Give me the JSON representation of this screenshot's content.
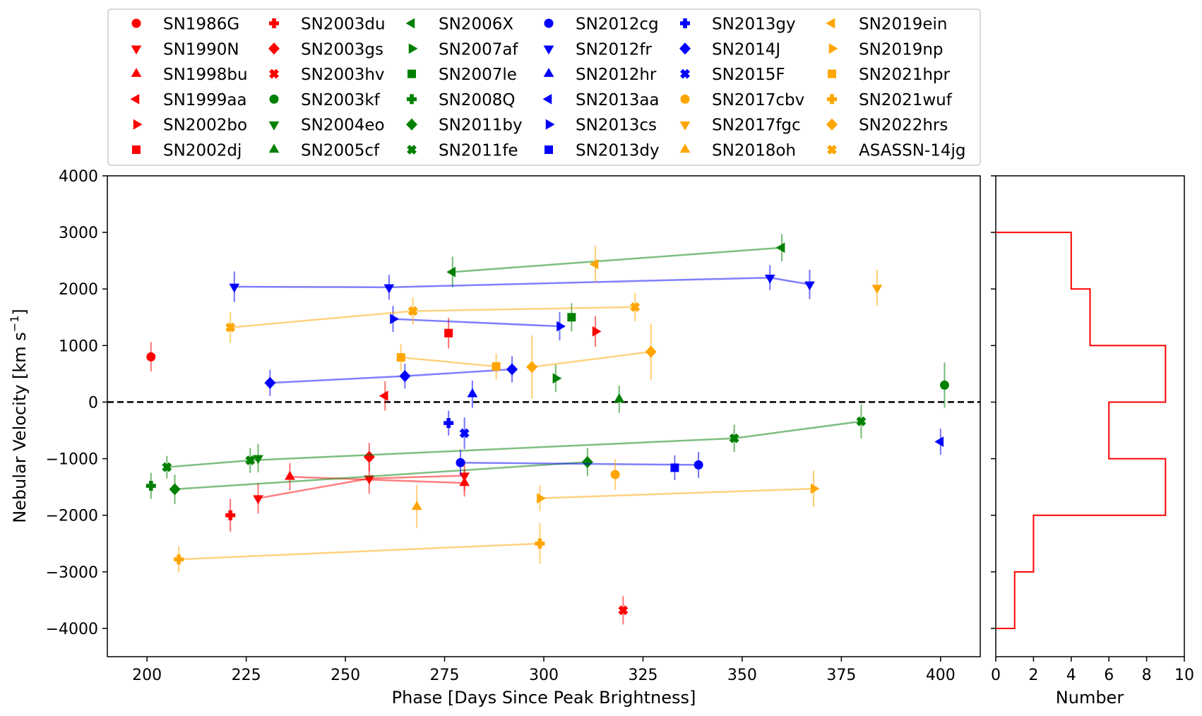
{
  "chart_data": {
    "type": "scatter",
    "xlabel": "Phase [Days Since Peak Brightness]",
    "ylabel_main": "Nebular Velocity [km s",
    "ylabel_sup": "−1",
    "ylabel_end": "]",
    "xlim": [
      190,
      410
    ],
    "ylim": [
      -4500,
      4000
    ],
    "xticks": [
      200,
      225,
      250,
      275,
      300,
      325,
      350,
      375,
      400
    ],
    "yticks": [
      -4000,
      -3000,
      -2000,
      -1000,
      0,
      1000,
      2000,
      3000,
      4000
    ],
    "ytick_labels": [
      "−4000",
      "−3000",
      "−2000",
      "−1000",
      "0",
      "1000",
      "2000",
      "3000",
      "4000"
    ],
    "zero_line": true,
    "colors": {
      "red": "#ff0000",
      "green": "#008000",
      "blue": "#0000ff",
      "orange": "#ffa500"
    },
    "series": [
      {
        "name": "SN1986G",
        "color": "red",
        "marker": "circle",
        "points": [
          [
            201,
            800,
            260
          ]
        ]
      },
      {
        "name": "SN1990N",
        "color": "red",
        "marker": "tri_down",
        "points": [
          [
            228,
            -1700,
            270
          ],
          [
            256,
            -1350,
            270
          ],
          [
            280,
            -1300,
            270
          ]
        ]
      },
      {
        "name": "SN1998bu",
        "color": "red",
        "marker": "tri_up",
        "points": [
          [
            236,
            -1320,
            240
          ],
          [
            280,
            -1430,
            240
          ]
        ]
      },
      {
        "name": "SN1999aa",
        "color": "red",
        "marker": "tri_left",
        "points": [
          [
            260,
            110,
            260
          ]
        ]
      },
      {
        "name": "SN2002bo",
        "color": "red",
        "marker": "tri_right",
        "points": [
          [
            313,
            1250,
            270
          ]
        ]
      },
      {
        "name": "SN2002dj",
        "color": "red",
        "marker": "square",
        "points": [
          [
            276,
            1220,
            270
          ]
        ]
      },
      {
        "name": "SN2003du",
        "color": "red",
        "marker": "plus",
        "points": [
          [
            221,
            -2000,
            290
          ]
        ]
      },
      {
        "name": "SN2003gs",
        "color": "red",
        "marker": "diamond",
        "points": [
          [
            256,
            -970,
            250
          ]
        ]
      },
      {
        "name": "SN2003hv",
        "color": "red",
        "marker": "x",
        "points": [
          [
            320,
            -3680,
            250
          ]
        ]
      },
      {
        "name": "SN2003kf",
        "color": "green",
        "marker": "circle",
        "points": [
          [
            401,
            300,
            400
          ]
        ]
      },
      {
        "name": "SN2004eo",
        "color": "green",
        "marker": "tri_down",
        "points": [
          [
            228,
            -990,
            250
          ]
        ]
      },
      {
        "name": "SN2005cf",
        "color": "green",
        "marker": "tri_up",
        "points": [
          [
            319,
            50,
            240
          ]
        ]
      },
      {
        "name": "SN2006X",
        "color": "green",
        "marker": "tri_left",
        "points": [
          [
            277,
            2300,
            270
          ],
          [
            360,
            2730,
            240
          ]
        ]
      },
      {
        "name": "SN2007af",
        "color": "green",
        "marker": "tri_right",
        "points": [
          [
            303,
            420,
            240
          ]
        ]
      },
      {
        "name": "SN2007le",
        "color": "green",
        "marker": "square",
        "points": [
          [
            307,
            1500,
            250
          ]
        ]
      },
      {
        "name": "SN2008Q",
        "color": "green",
        "marker": "plus",
        "points": [
          [
            201,
            -1480,
            230
          ]
        ]
      },
      {
        "name": "SN2011by",
        "color": "green",
        "marker": "diamond",
        "points": [
          [
            207,
            -1540,
            260
          ],
          [
            311,
            -1060,
            250
          ]
        ]
      },
      {
        "name": "SN2011fe",
        "color": "green",
        "marker": "x",
        "points": [
          [
            205,
            -1150,
            200
          ],
          [
            226,
            -1030,
            220
          ],
          [
            348,
            -640,
            240
          ],
          [
            380,
            -340,
            300
          ]
        ]
      },
      {
        "name": "SN2012cg",
        "color": "blue",
        "marker": "circle",
        "points": [
          [
            279,
            -1070,
            230
          ],
          [
            339,
            -1110,
            230
          ]
        ]
      },
      {
        "name": "SN2012fr",
        "color": "blue",
        "marker": "tri_down",
        "points": [
          [
            222,
            2040,
            270
          ],
          [
            261,
            2030,
            220
          ],
          [
            357,
            2200,
            220
          ],
          [
            367,
            2080,
            260
          ]
        ]
      },
      {
        "name": "SN2012hr",
        "color": "blue",
        "marker": "tri_up",
        "points": [
          [
            282,
            140,
            240
          ]
        ]
      },
      {
        "name": "SN2013aa",
        "color": "blue",
        "marker": "tri_left",
        "points": [
          [
            400,
            -700,
            230
          ]
        ]
      },
      {
        "name": "SN2013cs",
        "color": "blue",
        "marker": "tri_right",
        "points": [
          [
            262,
            1470,
            230
          ],
          [
            304,
            1340,
            250
          ]
        ]
      },
      {
        "name": "SN2013dy",
        "color": "blue",
        "marker": "square",
        "points": [
          [
            333,
            -1160,
            220
          ]
        ]
      },
      {
        "name": "SN2013gy",
        "color": "blue",
        "marker": "plus",
        "points": [
          [
            276,
            -370,
            220
          ]
        ]
      },
      {
        "name": "SN2014J",
        "color": "blue",
        "marker": "diamond",
        "points": [
          [
            231,
            340,
            230
          ],
          [
            265,
            460,
            220
          ],
          [
            292,
            580,
            230
          ]
        ]
      },
      {
        "name": "SN2015F",
        "color": "blue",
        "marker": "x",
        "points": [
          [
            280,
            -550,
            280
          ]
        ]
      },
      {
        "name": "SN2017cbv",
        "color": "orange",
        "marker": "circle",
        "points": [
          [
            318,
            -1280,
            270
          ]
        ]
      },
      {
        "name": "SN2017fgc",
        "color": "orange",
        "marker": "tri_down",
        "points": [
          [
            384,
            2020,
            320
          ]
        ]
      },
      {
        "name": "SN2018oh",
        "color": "orange",
        "marker": "tri_up",
        "points": [
          [
            268,
            -1850,
            380
          ]
        ]
      },
      {
        "name": "SN2019ein",
        "color": "orange",
        "marker": "tri_left",
        "points": [
          [
            313,
            2440,
            320
          ]
        ]
      },
      {
        "name": "SN2019np",
        "color": "orange",
        "marker": "tri_right",
        "points": [
          [
            299,
            -1700,
            230
          ],
          [
            368,
            -1530,
            320
          ]
        ]
      },
      {
        "name": "SN2021hpr",
        "color": "orange",
        "marker": "square",
        "points": [
          [
            264,
            790,
            230
          ],
          [
            288,
            630,
            230
          ]
        ]
      },
      {
        "name": "SN2021wuf",
        "color": "orange",
        "marker": "plus",
        "points": [
          [
            208,
            -2780,
            230
          ],
          [
            299,
            -2500,
            360
          ]
        ]
      },
      {
        "name": "SN2022hrs",
        "color": "orange",
        "marker": "diamond",
        "points": [
          [
            297,
            620,
            560
          ],
          [
            327,
            890,
            500
          ]
        ]
      },
      {
        "name": "ASASSN-14jg",
        "color": "orange",
        "marker": "x",
        "points": [
          [
            221,
            1320,
            270
          ],
          [
            267,
            1610,
            240
          ],
          [
            323,
            1680,
            250
          ]
        ]
      }
    ],
    "histogram": {
      "orientation": "horizontal",
      "color": "red",
      "bins": [
        [
          -4000,
          -3000,
          1
        ],
        [
          -3000,
          -2000,
          2
        ],
        [
          -2000,
          -1000,
          9
        ],
        [
          -1000,
          0,
          6
        ],
        [
          0,
          1000,
          9
        ],
        [
          1000,
          2000,
          5
        ],
        [
          2000,
          3000,
          4
        ]
      ],
      "xlim": [
        0,
        10
      ],
      "xticks": [
        0,
        2,
        4,
        6,
        8,
        10
      ],
      "xlabel": "Number"
    },
    "legend": {
      "placement": "top",
      "columns": 6
    }
  }
}
